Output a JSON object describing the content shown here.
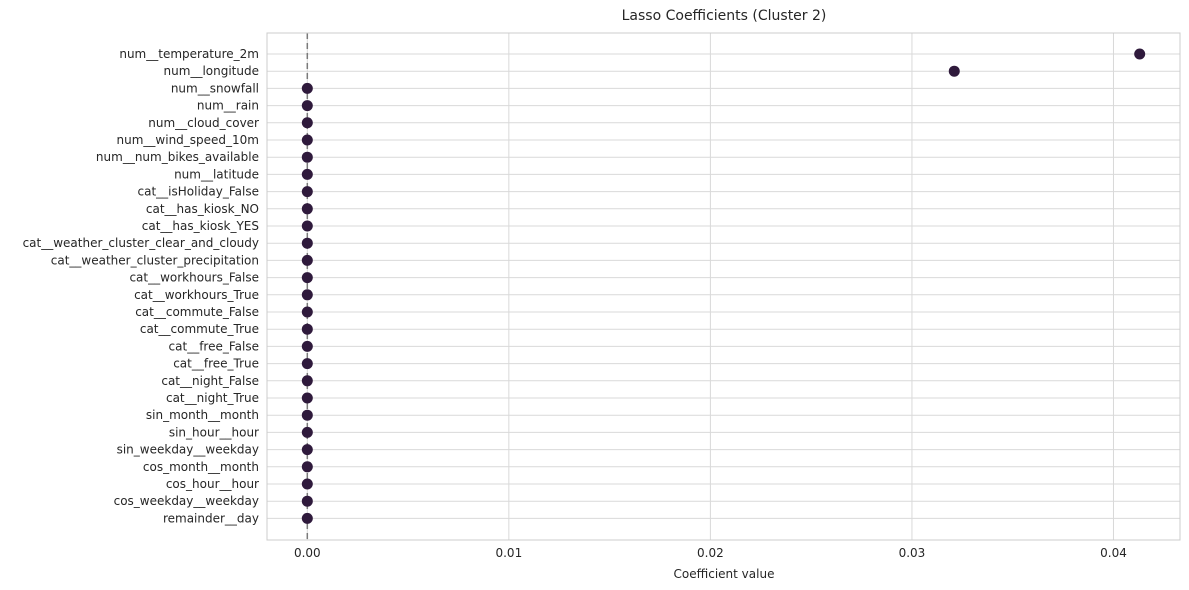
{
  "chart_data": {
    "type": "scatter",
    "title": "Lasso Coefficients (Cluster 2)",
    "xlabel": "Coefficient value",
    "ylabel": "",
    "xlim": [
      -0.002,
      0.0433
    ],
    "xticks": [
      0.0,
      0.01,
      0.02,
      0.03,
      0.04
    ],
    "xtick_labels": [
      "0.00",
      "0.01",
      "0.02",
      "0.03",
      "0.04"
    ],
    "grid": true,
    "reference_line": {
      "x": 0.0,
      "style": "dashed"
    },
    "point_color": "#2f1a3c",
    "categories": [
      "num__temperature_2m",
      "num__longitude",
      "num__snowfall",
      "num__rain",
      "num__cloud_cover",
      "num__wind_speed_10m",
      "num__num_bikes_available",
      "num__latitude",
      "cat__isHoliday_False",
      "cat__has_kiosk_NO",
      "cat__has_kiosk_YES",
      "cat__weather_cluster_clear_and_cloudy",
      "cat__weather_cluster_precipitation",
      "cat__workhours_False",
      "cat__workhours_True",
      "cat__commute_False",
      "cat__commute_True",
      "cat__free_False",
      "cat__free_True",
      "cat__night_False",
      "cat__night_True",
      "sin_month__month",
      "sin_hour__hour",
      "sin_weekday__weekday",
      "cos_month__month",
      "cos_hour__hour",
      "cos_weekday__weekday",
      "remainder__day"
    ],
    "values": [
      0.0413,
      0.0321,
      0,
      0,
      0,
      0,
      0,
      0,
      0,
      0,
      0,
      0,
      0,
      0,
      0,
      0,
      0,
      0,
      0,
      0,
      0,
      0,
      0,
      0,
      0,
      0,
      0,
      0
    ]
  }
}
